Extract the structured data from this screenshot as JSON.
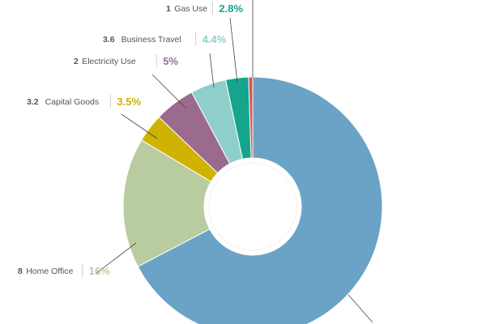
{
  "chart_data": {
    "type": "pie",
    "donut": true,
    "start_angle_deg": 0,
    "slices": [
      {
        "code": "",
        "name": "",
        "value": 66.4,
        "label": "",
        "color": "#6aa3c5"
      },
      {
        "code": "8",
        "name": "Home Office",
        "value": 16,
        "label": "16%",
        "color": "#b8cc9f"
      },
      {
        "code": "3.2",
        "name": "Capital Goods",
        "value": 3.5,
        "label": "3.5%",
        "color": "#cfb300"
      },
      {
        "code": "2",
        "name": "Electricity Use",
        "value": 5,
        "label": "5%",
        "color": "#9b6b8e"
      },
      {
        "code": "3.6",
        "name": "Business Travel",
        "value": 4.4,
        "label": "4.4%",
        "color": "#8ecfcb"
      },
      {
        "code": "1",
        "name": "Gas Use",
        "value": 2.8,
        "label": "2.8%",
        "color": "#14a58c"
      },
      {
        "code": "",
        "name": "",
        "value": 0.5,
        "label": "",
        "color": "#d9534f"
      }
    ]
  }
}
